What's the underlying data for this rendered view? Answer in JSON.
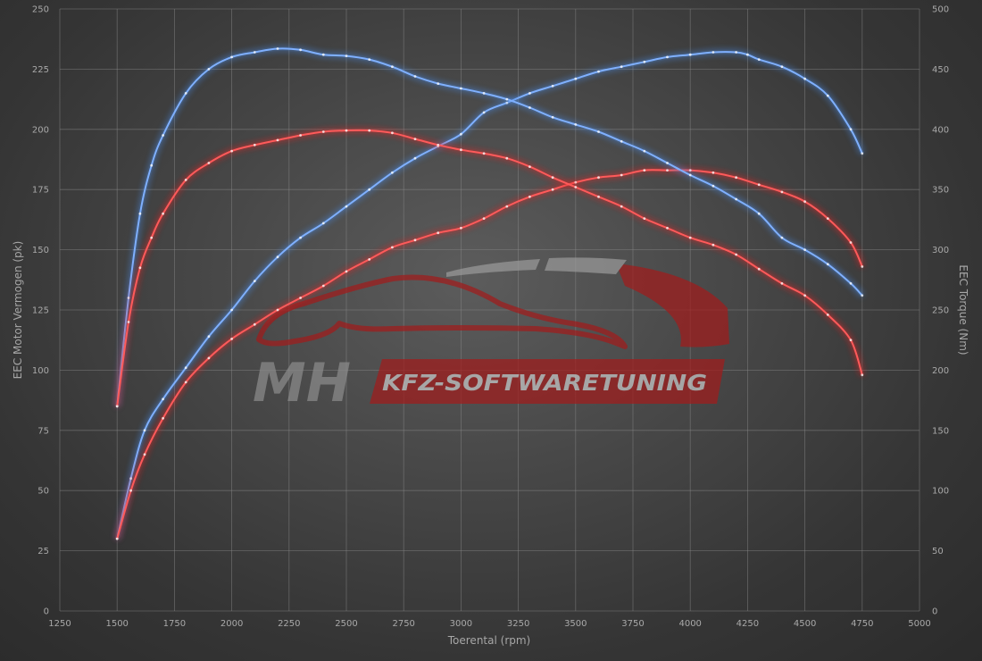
{
  "chart_data": {
    "type": "line",
    "xlabel": "Toerental (rpm)",
    "ylabel_left": "EEC Motor Vermogen (pk)",
    "ylabel_right": "EEC Torque (Nm)",
    "xlim": [
      1250,
      5000
    ],
    "ylim_left": [
      0,
      250
    ],
    "ylim_right": [
      0,
      500
    ],
    "x_ticks": [
      "1250",
      "1500",
      "1750",
      "2000",
      "2250",
      "2500",
      "2750",
      "3000",
      "3250",
      "3500",
      "3750",
      "4000",
      "4250",
      "4500",
      "4750",
      "5000"
    ],
    "y_ticks_left": [
      "0",
      "25",
      "50",
      "75",
      "100",
      "125",
      "150",
      "175",
      "200",
      "225",
      "250"
    ],
    "y_ticks_right": [
      "0",
      "50",
      "100",
      "150",
      "200",
      "250",
      "300",
      "350",
      "400",
      "450",
      "500"
    ],
    "grid": true,
    "series": [
      {
        "axis": "left",
        "color": "#4a88e0",
        "x": [
          1500,
          1560,
          1620,
          1700,
          1800,
          1900,
          2000,
          2100,
          2200,
          2300,
          2400,
          2500,
          2600,
          2700,
          2800,
          2900,
          3000,
          3100,
          3200,
          3300,
          3400,
          3500,
          3600,
          3700,
          3800,
          3900,
          4000,
          4100,
          4200,
          4250,
          4300,
          4400,
          4500,
          4600,
          4700,
          4750
        ],
        "y": [
          30,
          55,
          75,
          88,
          101,
          114,
          125,
          137,
          147,
          155,
          161,
          168,
          175,
          182,
          188,
          193,
          198,
          207,
          211,
          215,
          218,
          221,
          224,
          226,
          228,
          230,
          231,
          232,
          232,
          231,
          229,
          226,
          221,
          214,
          200,
          190
        ]
      },
      {
        "axis": "left",
        "color": "#dd2525",
        "x": [
          1500,
          1560,
          1620,
          1700,
          1800,
          1900,
          2000,
          2100,
          2200,
          2300,
          2400,
          2500,
          2600,
          2700,
          2800,
          2900,
          3000,
          3100,
          3200,
          3300,
          3400,
          3500,
          3600,
          3700,
          3800,
          3900,
          4000,
          4100,
          4200,
          4300,
          4400,
          4500,
          4600,
          4700,
          4750
        ],
        "y": [
          30,
          50,
          65,
          80,
          95,
          105,
          113,
          119,
          125,
          130,
          135,
          141,
          146,
          151,
          154,
          157,
          159,
          163,
          168,
          172,
          175,
          178,
          180,
          181,
          183,
          183,
          183,
          182,
          180,
          177,
          174,
          170,
          163,
          153,
          143
        ]
      },
      {
        "axis": "right",
        "color": "#4a88e0",
        "x": [
          1500,
          1550,
          1600,
          1650,
          1700,
          1800,
          1900,
          2000,
          2100,
          2200,
          2300,
          2400,
          2500,
          2600,
          2700,
          2800,
          2900,
          3000,
          3100,
          3200,
          3300,
          3400,
          3500,
          3600,
          3700,
          3800,
          3900,
          4000,
          4100,
          4200,
          4300,
          4400,
          4500,
          4600,
          4700,
          4750
        ],
        "y": [
          170,
          260,
          330,
          370,
          395,
          430,
          450,
          460,
          464,
          467,
          466,
          462,
          461,
          458,
          452,
          444,
          438,
          434,
          430,
          425,
          418,
          410,
          404,
          398,
          390,
          382,
          372,
          362,
          353,
          342,
          330,
          310,
          300,
          288,
          272,
          262
        ]
      },
      {
        "axis": "right",
        "color": "#dd2525",
        "x": [
          1500,
          1550,
          1600,
          1650,
          1700,
          1800,
          1900,
          2000,
          2100,
          2200,
          2300,
          2400,
          2500,
          2600,
          2700,
          2800,
          2900,
          3000,
          3100,
          3200,
          3300,
          3400,
          3500,
          3600,
          3700,
          3800,
          3900,
          4000,
          4100,
          4200,
          4300,
          4400,
          4500,
          4600,
          4700,
          4750
        ],
        "y": [
          170,
          240,
          285,
          310,
          330,
          358,
          372,
          382,
          387,
          391,
          395,
          398,
          399,
          399,
          397,
          392,
          387,
          383,
          380,
          376,
          369,
          360,
          352,
          344,
          336,
          326,
          318,
          310,
          304,
          296,
          284,
          272,
          262,
          246,
          225,
          196
        ]
      }
    ]
  },
  "watermark": {
    "logo": "MH",
    "tagline": "KFZ-SOFTWARETUNING"
  }
}
